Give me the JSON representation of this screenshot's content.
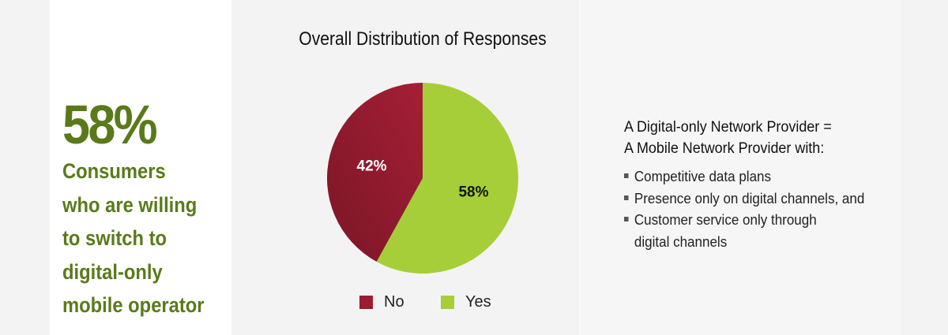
{
  "headline": {
    "value": "58%",
    "caption_lines": [
      "Consumers",
      "who are willing",
      "to switch to",
      "digital-only",
      "mobile operator"
    ]
  },
  "definition": {
    "title_lines": [
      "A Digital-only Network Provider =",
      "A Mobile Network Provider with:"
    ],
    "bullets": [
      "Competitive data plans",
      "Presence only on digital channels, and",
      "Customer service only through"
    ],
    "bullet_continuation": "digital channels"
  },
  "chart_data": {
    "type": "pie",
    "title": "Overall Distribution of Responses",
    "slices": [
      {
        "label": "Yes",
        "value": 58,
        "data_label": "58%",
        "color": "#a6ce39"
      },
      {
        "label": "No",
        "value": 42,
        "data_label": "42%",
        "color": "#9b1c31"
      }
    ],
    "legend": {
      "placement": "bottom",
      "entries": [
        "No",
        "Yes"
      ]
    }
  }
}
